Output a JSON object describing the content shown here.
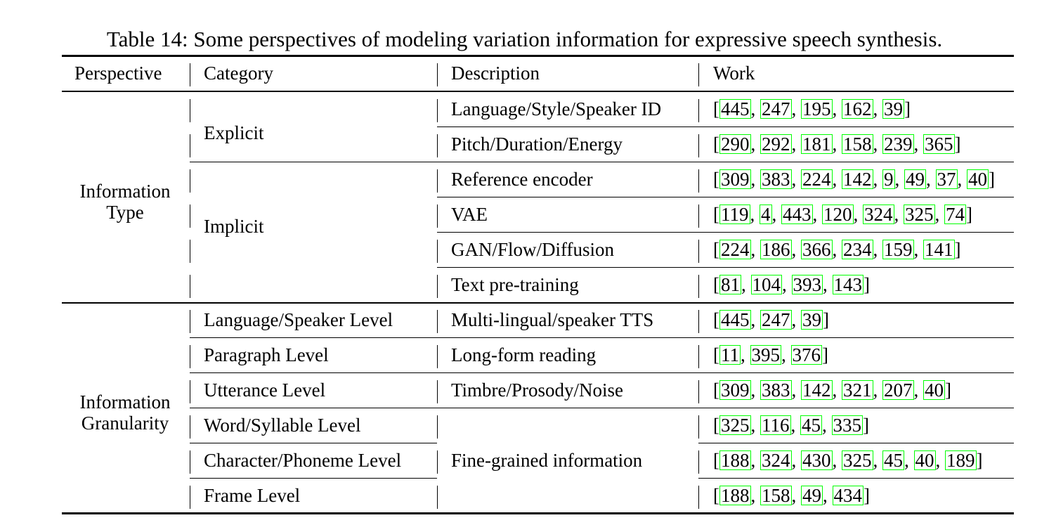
{
  "caption": "Table 14: Some perspectives of modeling variation information for expressive speech synthesis.",
  "header": {
    "perspective": "Perspective",
    "category": "Category",
    "description": "Description",
    "work": "Work"
  },
  "perspectives": [
    {
      "lines": [
        "Information",
        "Type"
      ]
    },
    {
      "lines": [
        "Information",
        "Granularity"
      ]
    }
  ],
  "categories": [
    "Explicit",
    "Implicit",
    "Language/Speaker Level",
    "Paragraph Level",
    "Utterance Level",
    "Word/Syllable Level",
    "Character/Phoneme Level",
    "Frame Level"
  ],
  "descriptions": [
    "Language/Style/Speaker ID",
    "Pitch/Duration/Energy",
    "Reference encoder",
    "VAE",
    "GAN/Flow/Diffusion",
    "Text pre-training",
    "Multi-lingual/speaker TTS",
    "Long-form reading",
    "Timbre/Prosody/Noise",
    "Fine-grained information"
  ],
  "works": [
    [
      "445",
      "247",
      "195",
      "162",
      "39"
    ],
    [
      "290",
      "292",
      "181",
      "158",
      "239",
      "365"
    ],
    [
      "309",
      "383",
      "224",
      "142",
      "9",
      "49",
      "37",
      "40"
    ],
    [
      "119",
      "4",
      "443",
      "120",
      "324",
      "325",
      "74"
    ],
    [
      "224",
      "186",
      "366",
      "234",
      "159",
      "141"
    ],
    [
      "81",
      "104",
      "393",
      "143"
    ],
    [
      "445",
      "247",
      "39"
    ],
    [
      "11",
      "395",
      "376"
    ],
    [
      "309",
      "383",
      "142",
      "321",
      "207",
      "40"
    ],
    [
      "325",
      "116",
      "45",
      "335"
    ],
    [
      "188",
      "324",
      "430",
      "325",
      "45",
      "40",
      "189"
    ],
    [
      "188",
      "158",
      "49",
      "434"
    ]
  ],
  "colors": {
    "ref_box": "#00ff00",
    "rule": "#000000"
  }
}
